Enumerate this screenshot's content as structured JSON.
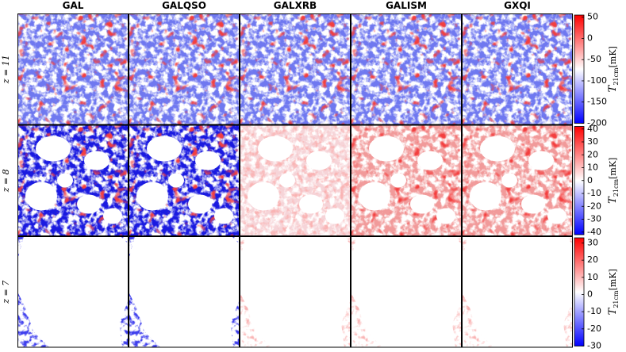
{
  "columns": [
    "GAL",
    "GALQSO",
    "GALXRB",
    "GALISM",
    "GXQI"
  ],
  "rows": [
    {
      "label": "z = 11",
      "colorbar": {
        "symbol": "T",
        "subscript": "21cm",
        "unit": "[mK]",
        "lim": [
          -200,
          55
        ],
        "ticks": [
          50,
          0,
          -50,
          -100,
          -150,
          -200
        ]
      }
    },
    {
      "label": "z = 8",
      "colorbar": {
        "symbol": "T",
        "subscript": "21cm",
        "unit": "[mK]",
        "lim": [
          -42,
          42
        ],
        "ticks": [
          40,
          30,
          20,
          10,
          0,
          -10,
          -20,
          -30,
          -40
        ]
      }
    },
    {
      "label": "z = 7",
      "colorbar": {
        "symbol": "T",
        "subscript": "21cm",
        "unit": "[mK]",
        "lim": [
          -30,
          33
        ],
        "ticks": [
          30,
          20,
          10,
          0,
          -10,
          -20,
          -30
        ]
      }
    }
  ]
}
